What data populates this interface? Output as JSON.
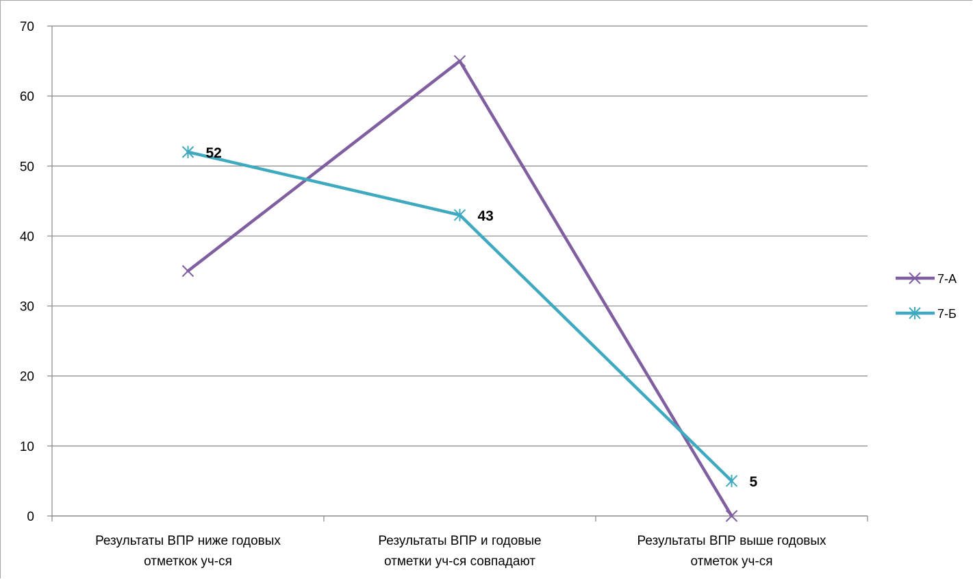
{
  "chart_data": {
    "type": "line",
    "title": "",
    "xlabel": "",
    "ylabel": "",
    "ylim": [
      0,
      70
    ],
    "yticks": [
      0,
      10,
      20,
      30,
      40,
      50,
      60,
      70
    ],
    "grid": true,
    "legend_position": "right",
    "categories": [
      [
        "Результаты  ВПР   ниже  годовых",
        "отметкок уч-ся"
      ],
      [
        "Результаты ВПР и годовые",
        "отметки уч-ся совпадают"
      ],
      [
        "Результаты ВПР  выше годовых",
        "отметок уч-ся"
      ]
    ],
    "series": [
      {
        "name": "7-А",
        "values": [
          35,
          65,
          0
        ],
        "color": "#7f5fa0",
        "marker": "x",
        "show_labels": false
      },
      {
        "name": "7-Б",
        "values": [
          52,
          43,
          5
        ],
        "color": "#3fa9c0",
        "marker": "star",
        "show_labels": true
      }
    ]
  }
}
